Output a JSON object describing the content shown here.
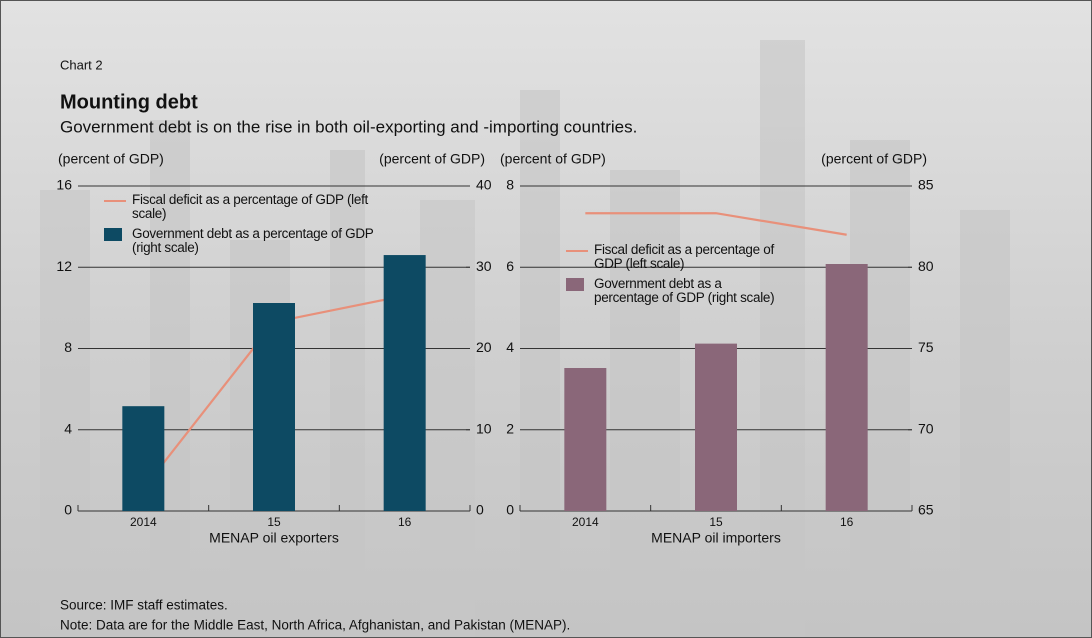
{
  "label": "Chart 2",
  "title": "Mounting debt",
  "subtitle": "Government debt is on the rise in both oil-exporting and -importing countries.",
  "source": "Source: IMF staff estimates.",
  "note": "Note: Data are for the Middle East, North Africa, Afghanistan, and Pakistan (MENAP).",
  "chart_data": [
    {
      "type": "bar",
      "xlabel": "MENAP oil exporters",
      "ylabel": "(percent of GDP)",
      "y2label": "(percent of GDP)",
      "categories": [
        "2014",
        "15",
        "16"
      ],
      "series": [
        {
          "name": "Fiscal deficit as a percentage of GDP  (left scale)",
          "type": "line",
          "color": "#e8907a",
          "axis": "y",
          "values": [
            1.1,
            9.3,
            10.6
          ]
        },
        {
          "name": "Government debt as a percentage of GDP (right scale)",
          "type": "bar",
          "color": "#0d4a63",
          "axis": "y2",
          "values": [
            12.9,
            25.6,
            31.5
          ]
        }
      ],
      "ylim": [
        0,
        16
      ],
      "yticks": [
        0,
        4,
        8,
        12,
        16
      ],
      "y2lim": [
        0,
        40
      ],
      "y2ticks": [
        0,
        10,
        20,
        30,
        40
      ]
    },
    {
      "type": "bar",
      "xlabel": "MENAP oil importers",
      "ylabel": "(percent of GDP)",
      "y2label": "(percent of GDP)",
      "categories": [
        "2014",
        "15",
        "16"
      ],
      "series": [
        {
          "name": "Fiscal deficit as a percentage of GDP (left scale)",
          "type": "line",
          "color": "#e8907a",
          "axis": "y",
          "values": [
            7.33,
            7.33,
            6.8
          ]
        },
        {
          "name": "Government debt as a percentage of GDP (right scale)",
          "type": "bar",
          "color": "#8a6779",
          "axis": "y2",
          "values": [
            73.8,
            75.3,
            80.2
          ]
        }
      ],
      "ylim": [
        0,
        8
      ],
      "yticks": [
        0,
        2,
        4,
        6,
        8
      ],
      "y2lim": [
        65,
        85
      ],
      "y2ticks": [
        65,
        70,
        75,
        80,
        85
      ]
    }
  ]
}
